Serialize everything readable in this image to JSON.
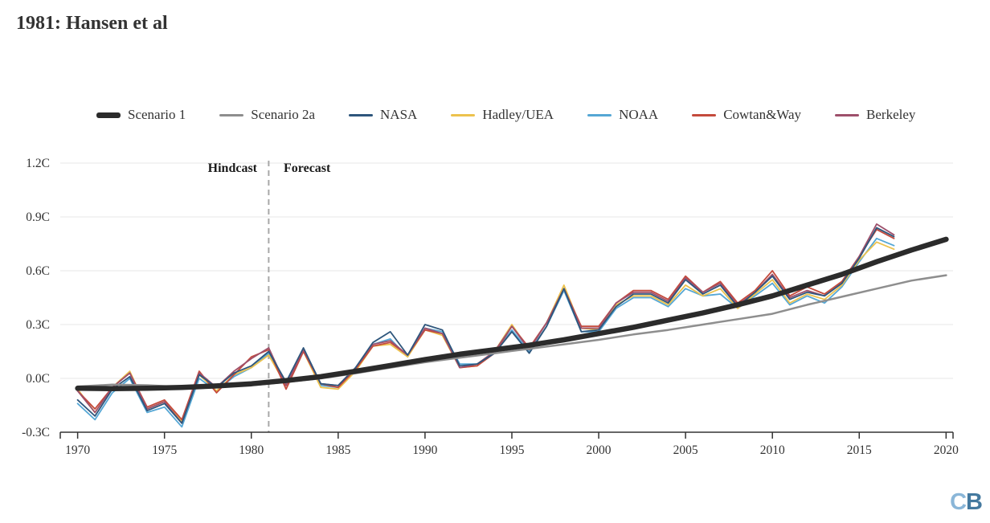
{
  "title": "1981: Hansen et al",
  "annotations": {
    "hindcast": "Hindcast",
    "forecast": "Forecast"
  },
  "logo": {
    "c": "C",
    "b": "B"
  },
  "colors": {
    "scenario1": "#2b2b2b",
    "scenario2a": "#8e8e8e",
    "nasa": "#2e567c",
    "hadley": "#ecc24d",
    "noaa": "#55a7d5",
    "cowtanway": "#c44a3c",
    "berkeley": "#9e506b",
    "axis": "#333333",
    "grid": "#e7e7e7",
    "divider": "#a8a8a8"
  },
  "legend": [
    {
      "label": "Scenario 1",
      "color": "#2b2b2b",
      "thick": true
    },
    {
      "label": "Scenario 2a",
      "color": "#8e8e8e",
      "thick": false
    },
    {
      "label": "NASA",
      "color": "#2e567c",
      "thick": false
    },
    {
      "label": "Hadley/UEA",
      "color": "#ecc24d",
      "thick": false
    },
    {
      "label": "NOAA",
      "color": "#55a7d5",
      "thick": false
    },
    {
      "label": "Cowtan&Way",
      "color": "#c44a3c",
      "thick": false
    },
    {
      "label": "Berkeley",
      "color": "#9e506b",
      "thick": false
    }
  ],
  "chart_data": {
    "type": "line",
    "title": "1981: Hansen et al",
    "xlabel": "",
    "ylabel": "",
    "xlim": [
      1969.0,
      2020.4
    ],
    "ylim": [
      -0.3,
      1.2
    ],
    "grid": true,
    "legend_position": "top",
    "x_ticks": [
      1970,
      1975,
      1980,
      1985,
      1990,
      1995,
      2000,
      2005,
      2010,
      2015,
      2020
    ],
    "y_ticks": [
      {
        "label": "1.2C",
        "value": 1.2
      },
      {
        "label": "0.9C",
        "value": 0.9
      },
      {
        "label": "0.6C",
        "value": 0.6
      },
      {
        "label": "0.3C",
        "value": 0.3
      },
      {
        "label": "0.0C",
        "value": 0.0
      },
      {
        "label": "-0.3C",
        "value": -0.3
      }
    ],
    "divider": {
      "x": 1981,
      "left_label": "Hindcast",
      "right_label": "Forecast"
    },
    "series": [
      {
        "name": "Scenario 1",
        "color": "#2b2b2b",
        "width": 6.5,
        "z": 7,
        "x": [
          1970,
          1972,
          1974,
          1976,
          1978,
          1980,
          1982,
          1984,
          1986,
          1988,
          1990,
          1992,
          1994,
          1996,
          1998,
          2000,
          2002,
          2004,
          2006,
          2008,
          2010,
          2012,
          2014,
          2016,
          2018,
          2020
        ],
        "values": [
          -0.055,
          -0.057,
          -0.055,
          -0.05,
          -0.042,
          -0.03,
          -0.012,
          0.01,
          0.04,
          0.072,
          0.105,
          0.135,
          0.16,
          0.185,
          0.215,
          0.25,
          0.285,
          0.325,
          0.365,
          0.41,
          0.46,
          0.52,
          0.58,
          0.65,
          0.715,
          0.775
        ]
      },
      {
        "name": "Scenario 2a",
        "color": "#8e8e8e",
        "width": 2.5,
        "z": 6,
        "x": [
          1970,
          1972,
          1974,
          1976,
          1978,
          1980,
          1982,
          1984,
          1986,
          1988,
          1990,
          1992,
          1994,
          1996,
          1998,
          2000,
          2002,
          2004,
          2006,
          2008,
          2010,
          2012,
          2014,
          2016,
          2018,
          2020
        ],
        "values": [
          -0.045,
          -0.035,
          -0.038,
          -0.048,
          -0.045,
          -0.038,
          -0.02,
          0.0,
          0.028,
          0.06,
          0.09,
          0.115,
          0.14,
          0.165,
          0.19,
          0.215,
          0.245,
          0.27,
          0.3,
          0.33,
          0.36,
          0.41,
          0.455,
          0.5,
          0.545,
          0.575
        ]
      },
      {
        "name": "NASA",
        "color": "#2e567c",
        "width": 1.8,
        "z": 5,
        "x": [
          1970,
          1971,
          1972,
          1973,
          1974,
          1975,
          1976,
          1977,
          1978,
          1979,
          1980,
          1981,
          1982,
          1983,
          1984,
          1985,
          1986,
          1987,
          1988,
          1989,
          1990,
          1991,
          1992,
          1993,
          1994,
          1995,
          1996,
          1997,
          1998,
          1999,
          2000,
          2001,
          2002,
          2003,
          2004,
          2005,
          2006,
          2007,
          2008,
          2009,
          2010,
          2011,
          2012,
          2013,
          2014,
          2015,
          2016,
          2017
        ],
        "values": [
          -0.12,
          -0.21,
          -0.06,
          0.01,
          -0.18,
          -0.14,
          -0.25,
          0.02,
          -0.05,
          0.03,
          0.07,
          0.15,
          -0.02,
          0.17,
          -0.03,
          -0.04,
          0.06,
          0.2,
          0.26,
          0.13,
          0.3,
          0.27,
          0.07,
          0.08,
          0.14,
          0.26,
          0.14,
          0.29,
          0.5,
          0.26,
          0.27,
          0.4,
          0.47,
          0.47,
          0.42,
          0.55,
          0.47,
          0.52,
          0.4,
          0.48,
          0.57,
          0.44,
          0.48,
          0.46,
          0.53,
          0.67,
          0.84,
          0.79
        ]
      },
      {
        "name": "Hadley/UEA",
        "color": "#ecc24d",
        "width": 1.8,
        "z": 2,
        "x": [
          1970,
          1971,
          1972,
          1973,
          1974,
          1975,
          1976,
          1977,
          1978,
          1979,
          1980,
          1981,
          1982,
          1983,
          1984,
          1985,
          1986,
          1987,
          1988,
          1989,
          1990,
          1991,
          1992,
          1993,
          1994,
          1995,
          1996,
          1997,
          1998,
          1999,
          2000,
          2001,
          2002,
          2003,
          2004,
          2005,
          2006,
          2007,
          2008,
          2009,
          2010,
          2011,
          2012,
          2013,
          2014,
          2015,
          2016,
          2017
        ],
        "values": [
          -0.06,
          -0.19,
          -0.05,
          0.04,
          -0.17,
          -0.13,
          -0.24,
          0.02,
          -0.07,
          0.02,
          0.06,
          0.13,
          -0.04,
          0.15,
          -0.05,
          -0.06,
          0.04,
          0.18,
          0.19,
          0.12,
          0.27,
          0.24,
          0.06,
          0.07,
          0.15,
          0.3,
          0.16,
          0.31,
          0.52,
          0.28,
          0.27,
          0.41,
          0.46,
          0.46,
          0.41,
          0.52,
          0.46,
          0.5,
          0.39,
          0.47,
          0.55,
          0.42,
          0.47,
          0.44,
          0.52,
          0.66,
          0.76,
          0.72
        ]
      },
      {
        "name": "NOAA",
        "color": "#55a7d5",
        "width": 1.8,
        "z": 1,
        "x": [
          1970,
          1971,
          1972,
          1973,
          1974,
          1975,
          1976,
          1977,
          1978,
          1979,
          1980,
          1981,
          1982,
          1983,
          1984,
          1985,
          1986,
          1987,
          1988,
          1989,
          1990,
          1991,
          1992,
          1993,
          1994,
          1995,
          1996,
          1997,
          1998,
          1999,
          2000,
          2001,
          2002,
          2003,
          2004,
          2005,
          2006,
          2007,
          2008,
          2009,
          2010,
          2011,
          2012,
          2013,
          2014,
          2015,
          2016,
          2017
        ],
        "values": [
          -0.14,
          -0.23,
          -0.08,
          0.0,
          -0.19,
          -0.16,
          -0.27,
          0.0,
          -0.07,
          0.01,
          0.06,
          0.14,
          -0.03,
          0.16,
          -0.04,
          -0.05,
          0.05,
          0.19,
          0.22,
          0.12,
          0.28,
          0.26,
          0.08,
          0.08,
          0.14,
          0.27,
          0.15,
          0.29,
          0.49,
          0.26,
          0.26,
          0.39,
          0.45,
          0.45,
          0.4,
          0.5,
          0.46,
          0.47,
          0.39,
          0.46,
          0.53,
          0.41,
          0.46,
          0.42,
          0.51,
          0.65,
          0.78,
          0.74
        ]
      },
      {
        "name": "Cowtan&Way",
        "color": "#c44a3c",
        "width": 1.8,
        "z": 3,
        "x": [
          1970,
          1971,
          1972,
          1973,
          1974,
          1975,
          1976,
          1977,
          1978,
          1979,
          1980,
          1981,
          1982,
          1983,
          1984,
          1985,
          1986,
          1987,
          1988,
          1989,
          1990,
          1991,
          1992,
          1993,
          1994,
          1995,
          1996,
          1997,
          1998,
          1999,
          2000,
          2001,
          2002,
          2003,
          2004,
          2005,
          2006,
          2007,
          2008,
          2009,
          2010,
          2011,
          2012,
          2013,
          2014,
          2015,
          2016,
          2017
        ],
        "values": [
          -0.07,
          -0.17,
          -0.05,
          0.03,
          -0.16,
          -0.12,
          -0.23,
          0.04,
          -0.08,
          0.02,
          0.12,
          0.16,
          -0.06,
          0.15,
          -0.03,
          -0.05,
          0.05,
          0.18,
          0.2,
          0.13,
          0.27,
          0.25,
          0.06,
          0.07,
          0.14,
          0.29,
          0.17,
          0.31,
          0.5,
          0.29,
          0.29,
          0.42,
          0.49,
          0.49,
          0.44,
          0.57,
          0.48,
          0.54,
          0.42,
          0.49,
          0.6,
          0.46,
          0.51,
          0.47,
          0.54,
          0.68,
          0.83,
          0.78
        ]
      },
      {
        "name": "Berkeley",
        "color": "#9e506b",
        "width": 1.8,
        "z": 4,
        "x": [
          1970,
          1971,
          1972,
          1973,
          1974,
          1975,
          1976,
          1977,
          1978,
          1979,
          1980,
          1981,
          1982,
          1983,
          1984,
          1985,
          1986,
          1987,
          1988,
          1989,
          1990,
          1991,
          1992,
          1993,
          1994,
          1995,
          1996,
          1997,
          1998,
          1999,
          2000,
          2001,
          2002,
          2003,
          2004,
          2005,
          2006,
          2007,
          2008,
          2009,
          2010,
          2011,
          2012,
          2013,
          2014,
          2015,
          2016,
          2017
        ],
        "values": [
          -0.07,
          -0.19,
          -0.05,
          0.03,
          -0.17,
          -0.13,
          -0.25,
          0.03,
          -0.05,
          0.04,
          0.11,
          0.17,
          -0.04,
          0.16,
          -0.03,
          -0.04,
          0.06,
          0.19,
          0.21,
          0.13,
          0.28,
          0.25,
          0.06,
          0.08,
          0.15,
          0.29,
          0.16,
          0.31,
          0.5,
          0.28,
          0.28,
          0.42,
          0.48,
          0.48,
          0.43,
          0.56,
          0.48,
          0.53,
          0.41,
          0.48,
          0.58,
          0.45,
          0.49,
          0.46,
          0.53,
          0.68,
          0.86,
          0.8
        ]
      }
    ]
  }
}
